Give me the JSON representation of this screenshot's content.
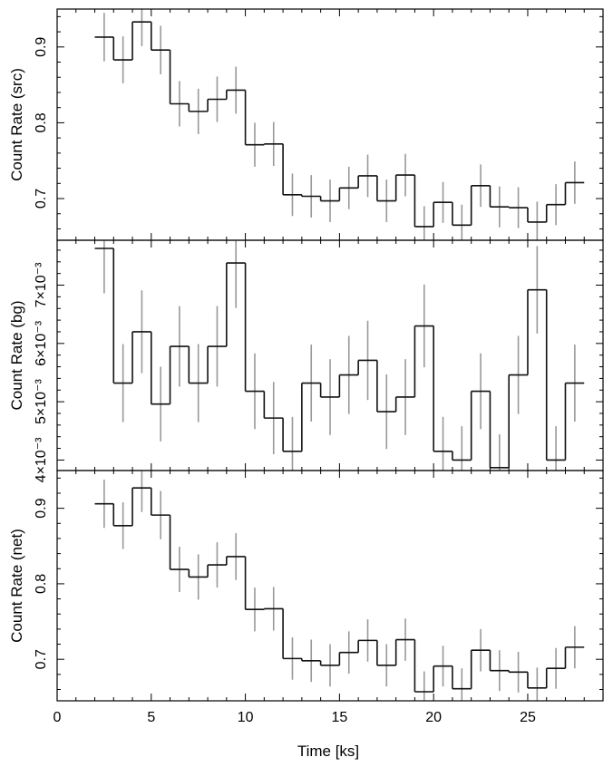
{
  "colors": {
    "step": "#111111",
    "error": "#999999",
    "axis": "#000000"
  },
  "shared_x": {
    "label": "Time [ks]",
    "range": [
      0,
      29
    ],
    "ticks": [
      0,
      5,
      10,
      15,
      20,
      25
    ],
    "tick_labels": [
      "0",
      "5",
      "10",
      "15",
      "20",
      "25"
    ]
  },
  "chart_data": [
    {
      "type": "step",
      "ylabel": "Count Rate (src)",
      "xlim": [
        0,
        29
      ],
      "ylim": [
        0.645,
        0.95
      ],
      "yticks": [
        0.7,
        0.8,
        0.9
      ],
      "ytick_labels": [
        "0.7",
        "0.8",
        "0.9"
      ],
      "x": [
        2.5,
        3.5,
        4.5,
        5.5,
        6.5,
        7.5,
        8.5,
        9.5,
        10.5,
        11.5,
        12.5,
        13.5,
        14.5,
        15.5,
        16.5,
        17.5,
        18.5,
        19.5,
        20.5,
        21.5,
        22.5,
        23.5,
        24.5,
        25.5,
        26.5,
        27.5
      ],
      "y": [
        0.913,
        0.883,
        0.933,
        0.896,
        0.825,
        0.815,
        0.831,
        0.843,
        0.771,
        0.772,
        0.705,
        0.703,
        0.697,
        0.714,
        0.73,
        0.697,
        0.731,
        0.663,
        0.695,
        0.665,
        0.717,
        0.689,
        0.688,
        0.669,
        0.692,
        0.721
      ],
      "yerr": [
        0.032,
        0.031,
        0.032,
        0.032,
        0.03,
        0.03,
        0.03,
        0.031,
        0.029,
        0.029,
        0.028,
        0.028,
        0.028,
        0.028,
        0.028,
        0.028,
        0.028,
        0.027,
        0.027,
        0.027,
        0.028,
        0.027,
        0.027,
        0.027,
        0.027,
        0.028
      ]
    },
    {
      "type": "step",
      "ylabel": "Count Rate (bg)",
      "xlim": [
        0,
        29
      ],
      "ylim": [
        0.00382,
        0.00777
      ],
      "yticks": [
        0.004,
        0.005,
        0.006,
        0.007
      ],
      "ytick_labels": [
        "4×10⁻³",
        "5×10⁻³",
        "6×10⁻³",
        "7×10⁻³"
      ],
      "x": [
        2.5,
        3.5,
        4.5,
        5.5,
        6.5,
        7.5,
        8.5,
        9.5,
        10.5,
        11.5,
        12.5,
        13.5,
        14.5,
        15.5,
        16.5,
        17.5,
        18.5,
        19.5,
        20.5,
        21.5,
        22.5,
        23.5,
        24.5,
        25.5,
        26.5,
        27.5
      ],
      "y": [
        0.00763,
        0.00532,
        0.0062,
        0.00496,
        0.00595,
        0.00532,
        0.00595,
        0.00738,
        0.00518,
        0.00472,
        0.00415,
        0.00532,
        0.00508,
        0.00546,
        0.00571,
        0.00483,
        0.00508,
        0.0063,
        0.00415,
        0.004,
        0.00518,
        0.00387,
        0.00546,
        0.00692,
        0.004,
        0.00532
      ],
      "yerr": [
        0.00077,
        0.00067,
        0.00071,
        0.00064,
        0.00069,
        0.00067,
        0.00069,
        0.00077,
        0.00065,
        0.00062,
        0.00059,
        0.00066,
        0.00065,
        0.00067,
        0.00068,
        0.00064,
        0.00065,
        0.00071,
        0.00059,
        0.00058,
        0.00065,
        0.00057,
        0.00067,
        0.00075,
        0.00058,
        0.00066
      ]
    },
    {
      "type": "step",
      "ylabel": "Count Rate (net)",
      "xlim": [
        0,
        29
      ],
      "ylim": [
        0.645,
        0.95
      ],
      "yticks": [
        0.7,
        0.8,
        0.9
      ],
      "ytick_labels": [
        "0.7",
        "0.8",
        "0.9"
      ],
      "x": [
        2.5,
        3.5,
        4.5,
        5.5,
        6.5,
        7.5,
        8.5,
        9.5,
        10.5,
        11.5,
        12.5,
        13.5,
        14.5,
        15.5,
        16.5,
        17.5,
        18.5,
        19.5,
        20.5,
        21.5,
        22.5,
        23.5,
        24.5,
        25.5,
        26.5,
        27.5
      ],
      "y": [
        0.906,
        0.877,
        0.927,
        0.891,
        0.819,
        0.809,
        0.825,
        0.836,
        0.766,
        0.767,
        0.701,
        0.698,
        0.692,
        0.709,
        0.725,
        0.692,
        0.726,
        0.657,
        0.691,
        0.661,
        0.712,
        0.685,
        0.683,
        0.662,
        0.688,
        0.716
      ],
      "yerr": [
        0.032,
        0.031,
        0.032,
        0.032,
        0.03,
        0.03,
        0.03,
        0.031,
        0.029,
        0.029,
        0.028,
        0.028,
        0.028,
        0.028,
        0.028,
        0.028,
        0.028,
        0.027,
        0.027,
        0.027,
        0.028,
        0.027,
        0.027,
        0.027,
        0.027,
        0.028
      ]
    }
  ]
}
